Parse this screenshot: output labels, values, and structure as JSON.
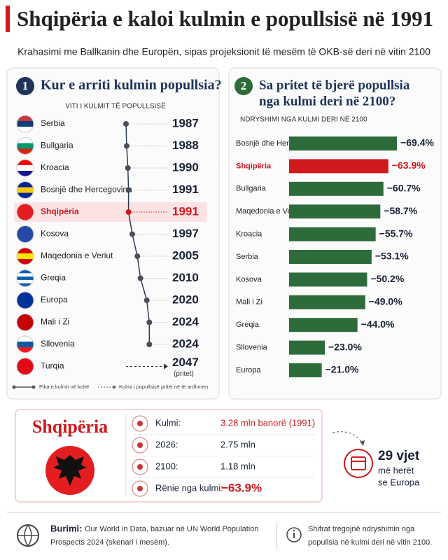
{
  "header": {
    "title": "Shqipëria e kaloi kulmin e popullsisë në 1991",
    "subtitle": "Krahasimi me Ballkanin dhe Europën, sipas projeksionit të mesëm të OKB-së deri në vitin 2100"
  },
  "chart_data": [
    {
      "type": "timeline",
      "number": "1",
      "title": "Kur e arriti kulmin popullsia?",
      "axis_label": "VITI I KULMIT TË POPULLSISË",
      "categories": [
        "Serbia",
        "Bullgaria",
        "Kroacia",
        "Bosnjë dhe Hercegovina",
        "Shqipëria",
        "Kosova",
        "Maqedonia e Veriut",
        "Greqia",
        "Europa",
        "Mali i Zi",
        "Sllovenia",
        "Turqia"
      ],
      "values": [
        1987,
        1988,
        1990,
        1991,
        1991,
        1997,
        2005,
        2010,
        2020,
        2024,
        2024,
        2047
      ],
      "projected": [
        false,
        false,
        false,
        false,
        false,
        false,
        false,
        false,
        false,
        false,
        false,
        true
      ],
      "projected_note": "(pritet)",
      "highlight": "Shqipëria",
      "color": "#2b3a55",
      "highlight_color": "#d0191e",
      "legend": [
        "Pika e kulmit në kohë",
        "Kulmi i popullsisë pritet në të ardhmen"
      ]
    },
    {
      "type": "bar",
      "number": "2",
      "title": [
        "Sa pritet të bjerë popullsia",
        "nga kulmi deri në 2100?"
      ],
      "axis_label": "NDRYSHIMI NGA KULMI DERI NË 2100",
      "categories": [
        "Bosnjë dhe Hercegovina",
        "Shqipëria",
        "Bullgaria",
        "Maqedonia e Veriut",
        "Kroacia",
        "Serbia",
        "Kosova",
        "Mali i Zi",
        "Greqia",
        "Sllovenia",
        "Europa"
      ],
      "values": [
        -69.4,
        -63.9,
        -60.7,
        -58.7,
        -55.7,
        -53.1,
        -50.2,
        -49.0,
        -44.0,
        -23.0,
        -21.0
      ],
      "value_labels": [
        "−69.4%",
        "−63.9%",
        "−60.7%",
        "−58.7%",
        "−55.7%",
        "−53.1%",
        "−50.2%",
        "−49.0%",
        "−44.0%",
        "−23.0%",
        "−21.0%"
      ],
      "color": "#2e6b3a",
      "highlight": "Shqipëria",
      "highlight_color": "#d0191e"
    }
  ],
  "profile": {
    "name": "Shqipëria",
    "rows": [
      {
        "label": "Kulmi:",
        "value": "3.28 mln banorë (1991)"
      },
      {
        "label": "2026:",
        "value": "2.75 mln"
      },
      {
        "label": "2100:",
        "value": "1.18 mln"
      },
      {
        "label": "Rënie nga kulmi:",
        "value": "−63.9%"
      }
    ]
  },
  "callout": {
    "value": "29 vjet",
    "lines": [
      "më herët",
      "se Europa"
    ]
  },
  "footer": {
    "source_label": "Burimi:",
    "source": [
      "Our World in Data, bazuar në UN World Population",
      "Prospects 2024 (skenari i mesëm)."
    ],
    "note": [
      "Shifrat tregojnë ndryshimin nga",
      "popullsia në kulmi deri në vitin 2100."
    ]
  }
}
